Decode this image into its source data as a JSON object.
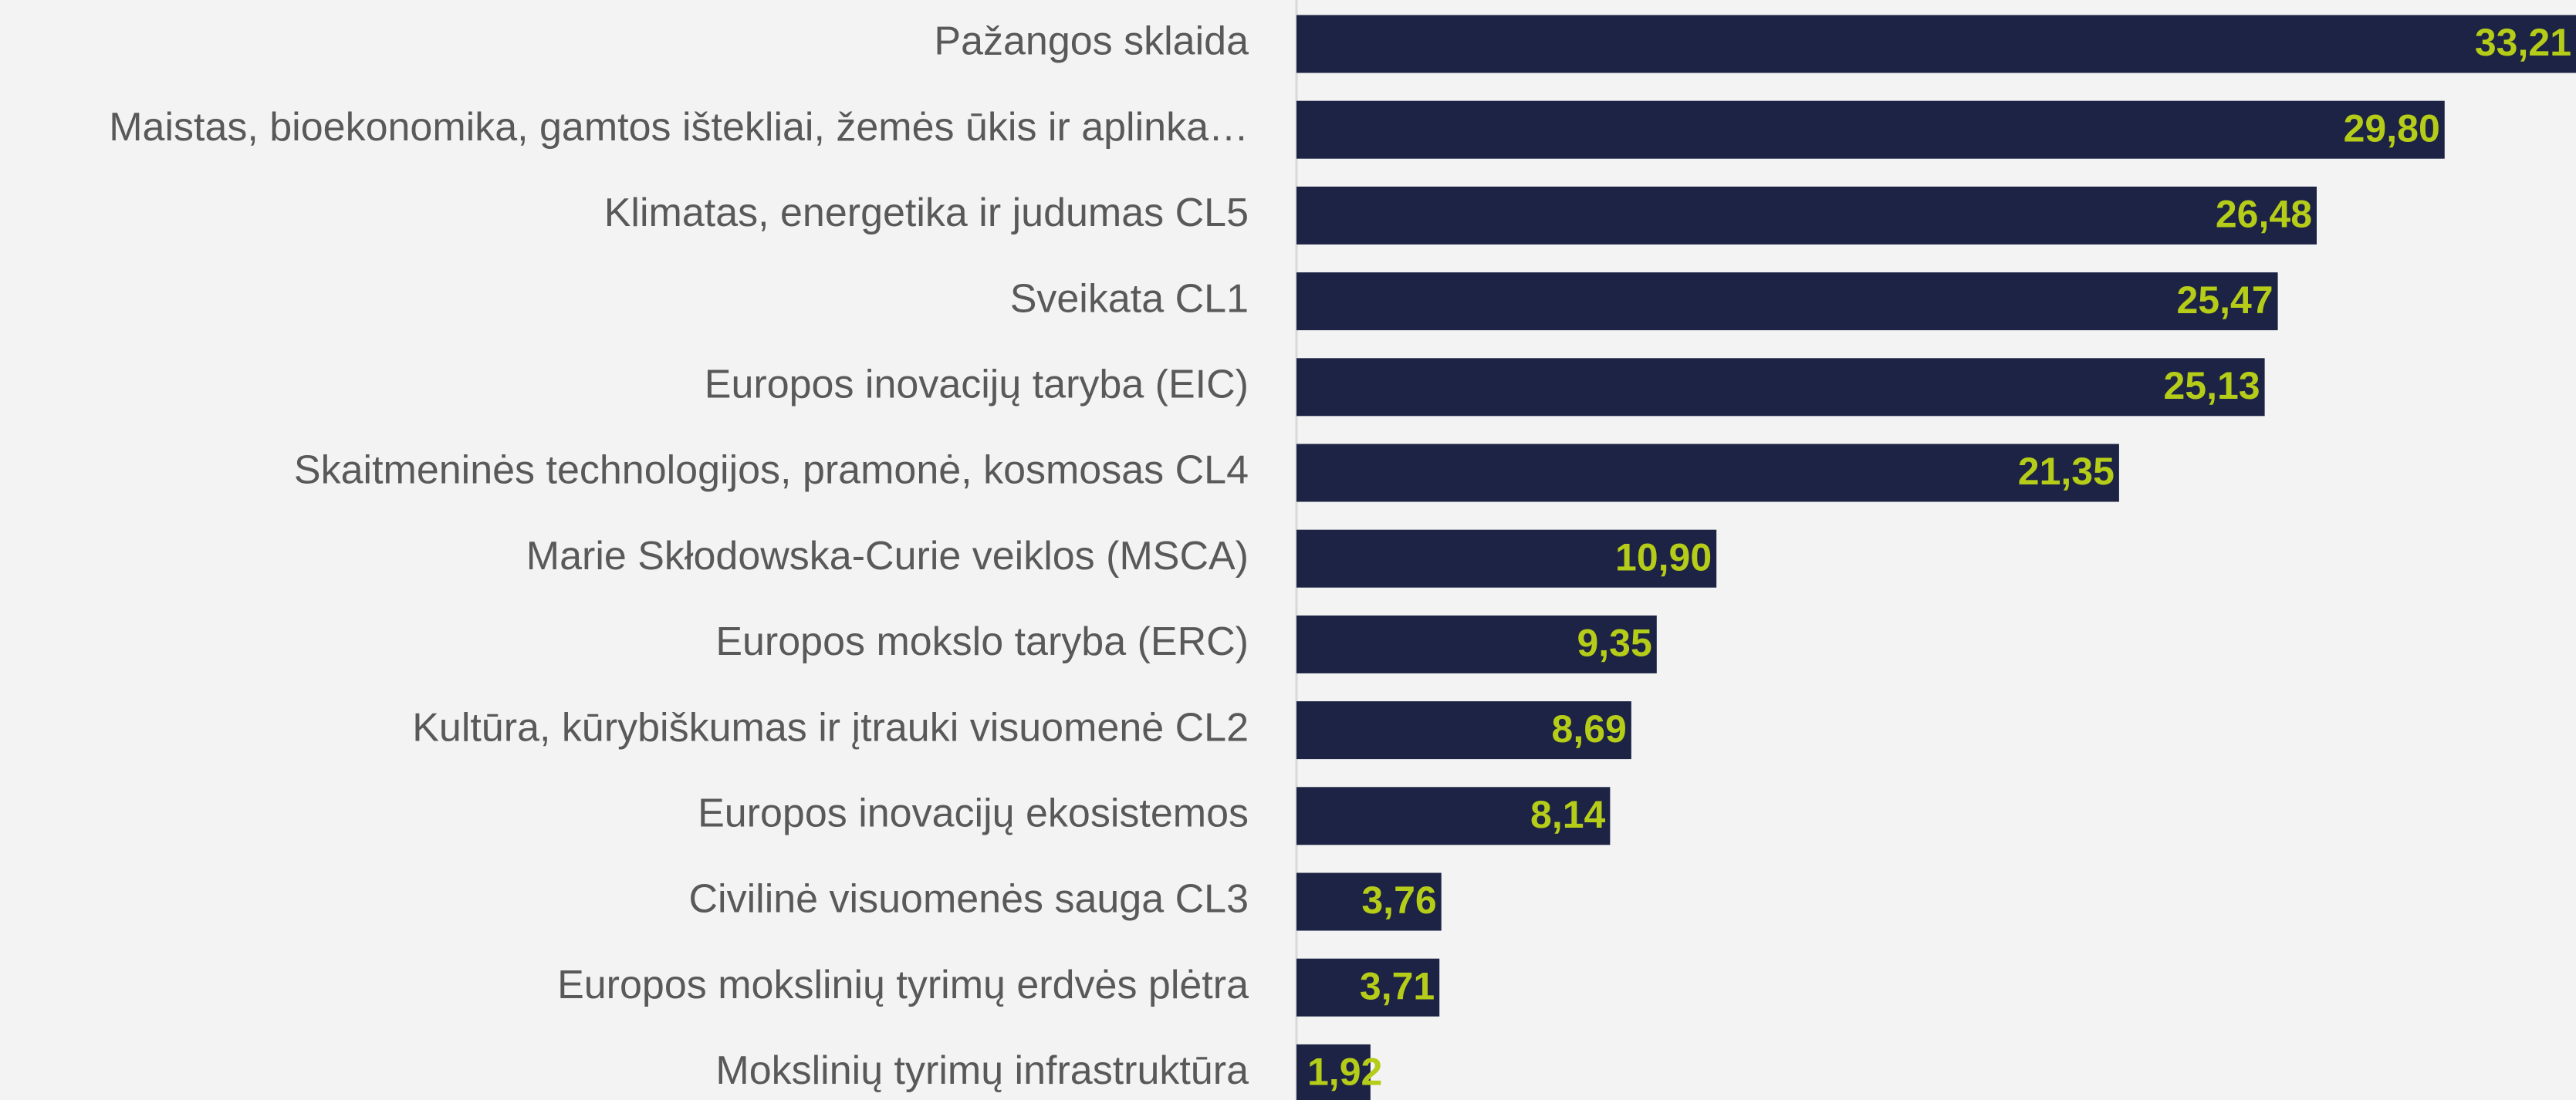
{
  "chart_data": {
    "type": "barh",
    "categories": [
      "Pažangos sklaida",
      "Maistas, bioekonomika, gamtos ištekliai, žemės ūkis ir aplinka…",
      "Klimatas, energetika ir judumas CL5",
      "Sveikata CL1",
      "Europos inovacijų taryba (EIC)",
      "Skaitmeninės technologijos, pramonė, kosmosas CL4",
      "Marie Skłodowska-Curie veiklos (MSCA)",
      "Europos mokslo taryba (ERC)",
      "Kultūra, kūrybiškumas ir įtrauki visuomenė CL2",
      "Europos inovacijų ekosistemos",
      "Civilinė visuomenės sauga CL3",
      "Europos mokslinių tyrimų erdvės plėtra",
      "Mokslinių tyrimų infrastruktūra"
    ],
    "values": [
      33.21,
      29.8,
      26.48,
      25.47,
      25.13,
      21.35,
      10.9,
      9.35,
      8.69,
      8.14,
      3.76,
      3.71,
      1.92
    ],
    "value_labels": [
      "33,21",
      "29,80",
      "26,48",
      "25,47",
      "25,13",
      "21,35",
      "10,90",
      "9,35",
      "8,69",
      "8,14",
      "3,76",
      "3,71",
      "1,92"
    ],
    "color": "#1c2344",
    "label_color": "#b5cc18"
  }
}
